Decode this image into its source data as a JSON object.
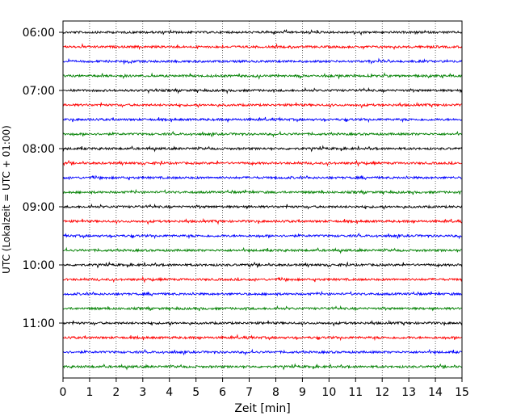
{
  "chart_data": {
    "type": "line",
    "title": "",
    "xlabel": "Zeit  [min]",
    "ylabel": "UTC (Lokalzeit = UTC + 01:00)",
    "xlim": [
      0,
      15
    ],
    "x_ticks": [
      "0",
      "1",
      "2",
      "3",
      "4",
      "5",
      "6",
      "7",
      "8",
      "9",
      "10",
      "11",
      "12",
      "13",
      "14",
      "15"
    ],
    "y_ticks": [
      "06:00",
      "07:00",
      "08:00",
      "09:00",
      "10:00",
      "11:00"
    ],
    "grid": "vertical dotted lines at each minute",
    "trace_interval_min": 15,
    "trace_colors": [
      "#000000",
      "#ff0000",
      "#0000ff",
      "#008000"
    ],
    "traces": [
      {
        "start": "06:00",
        "color": "#000000"
      },
      {
        "start": "06:15",
        "color": "#ff0000"
      },
      {
        "start": "06:30",
        "color": "#0000ff"
      },
      {
        "start": "06:45",
        "color": "#008000"
      },
      {
        "start": "07:00",
        "color": "#000000"
      },
      {
        "start": "07:15",
        "color": "#ff0000"
      },
      {
        "start": "07:30",
        "color": "#0000ff"
      },
      {
        "start": "07:45",
        "color": "#008000"
      },
      {
        "start": "08:00",
        "color": "#000000"
      },
      {
        "start": "08:15",
        "color": "#ff0000"
      },
      {
        "start": "08:30",
        "color": "#0000ff"
      },
      {
        "start": "08:45",
        "color": "#008000"
      },
      {
        "start": "09:00",
        "color": "#000000"
      },
      {
        "start": "09:15",
        "color": "#ff0000"
      },
      {
        "start": "09:30",
        "color": "#0000ff"
      },
      {
        "start": "09:45",
        "color": "#008000"
      },
      {
        "start": "10:00",
        "color": "#000000"
      },
      {
        "start": "10:15",
        "color": "#ff0000"
      },
      {
        "start": "10:30",
        "color": "#0000ff"
      },
      {
        "start": "10:45",
        "color": "#008000"
      },
      {
        "start": "11:00",
        "color": "#000000"
      },
      {
        "start": "11:15",
        "color": "#ff0000"
      },
      {
        "start": "11:30",
        "color": "#0000ff"
      },
      {
        "start": "11:45",
        "color": "#008000"
      }
    ]
  }
}
